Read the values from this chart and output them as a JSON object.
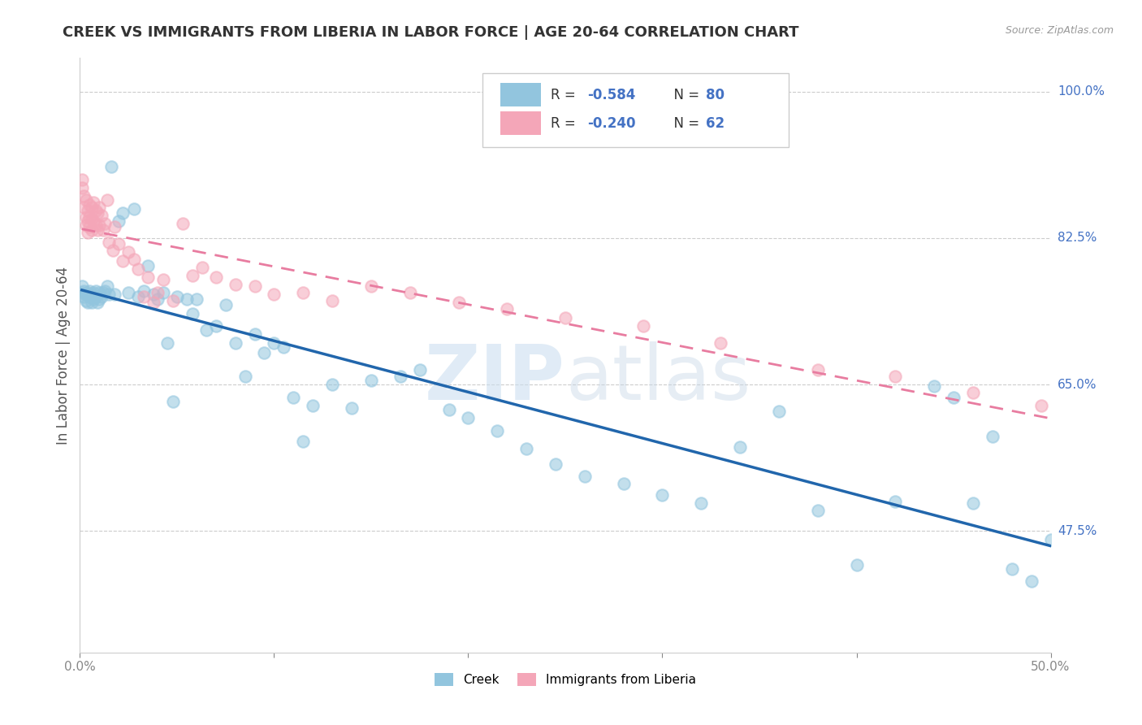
{
  "title": "CREEK VS IMMIGRANTS FROM LIBERIA IN LABOR FORCE | AGE 20-64 CORRELATION CHART",
  "source": "Source: ZipAtlas.com",
  "ylabel": "In Labor Force | Age 20-64",
  "xmin": 0.0,
  "xmax": 0.5,
  "ymin": 0.33,
  "ymax": 1.04,
  "creek_color": "#92c5de",
  "liberia_color": "#f4a6b8",
  "creek_line_color": "#2166ac",
  "liberia_line_color": "#e87ca0",
  "legend_R_creek": "-0.584",
  "legend_N_creek": "80",
  "legend_R_liberia": "-0.240",
  "legend_N_liberia": "62",
  "watermark_zip": "ZIP",
  "watermark_atlas": "atlas",
  "creek_scatter_x": [
    0.001,
    0.001,
    0.002,
    0.002,
    0.003,
    0.003,
    0.004,
    0.004,
    0.005,
    0.005,
    0.006,
    0.006,
    0.007,
    0.007,
    0.008,
    0.008,
    0.009,
    0.01,
    0.01,
    0.011,
    0.012,
    0.013,
    0.014,
    0.015,
    0.016,
    0.018,
    0.02,
    0.022,
    0.025,
    0.028,
    0.03,
    0.033,
    0.035,
    0.038,
    0.04,
    0.043,
    0.045,
    0.048,
    0.05,
    0.055,
    0.058,
    0.06,
    0.065,
    0.07,
    0.075,
    0.08,
    0.085,
    0.09,
    0.095,
    0.1,
    0.105,
    0.11,
    0.115,
    0.12,
    0.13,
    0.14,
    0.15,
    0.165,
    0.175,
    0.19,
    0.2,
    0.215,
    0.23,
    0.245,
    0.26,
    0.28,
    0.3,
    0.32,
    0.34,
    0.36,
    0.38,
    0.4,
    0.42,
    0.44,
    0.45,
    0.46,
    0.47,
    0.48,
    0.49,
    0.5
  ],
  "creek_scatter_y": [
    0.76,
    0.768,
    0.755,
    0.762,
    0.75,
    0.758,
    0.748,
    0.76,
    0.755,
    0.762,
    0.748,
    0.758,
    0.752,
    0.76,
    0.755,
    0.762,
    0.748,
    0.76,
    0.752,
    0.755,
    0.76,
    0.762,
    0.768,
    0.758,
    0.91,
    0.758,
    0.845,
    0.855,
    0.76,
    0.86,
    0.755,
    0.762,
    0.792,
    0.758,
    0.752,
    0.76,
    0.7,
    0.63,
    0.755,
    0.752,
    0.735,
    0.752,
    0.715,
    0.72,
    0.745,
    0.7,
    0.66,
    0.71,
    0.688,
    0.7,
    0.695,
    0.635,
    0.582,
    0.625,
    0.65,
    0.622,
    0.655,
    0.66,
    0.668,
    0.62,
    0.61,
    0.595,
    0.573,
    0.555,
    0.54,
    0.532,
    0.518,
    0.508,
    0.575,
    0.618,
    0.5,
    0.435,
    0.51,
    0.648,
    0.635,
    0.508,
    0.588,
    0.43,
    0.415,
    0.465
  ],
  "liberia_scatter_x": [
    0.001,
    0.001,
    0.002,
    0.002,
    0.003,
    0.003,
    0.003,
    0.004,
    0.004,
    0.004,
    0.005,
    0.005,
    0.005,
    0.006,
    0.006,
    0.006,
    0.007,
    0.007,
    0.008,
    0.008,
    0.009,
    0.009,
    0.01,
    0.01,
    0.011,
    0.012,
    0.013,
    0.014,
    0.015,
    0.017,
    0.018,
    0.02,
    0.022,
    0.025,
    0.028,
    0.03,
    0.033,
    0.035,
    0.038,
    0.04,
    0.043,
    0.048,
    0.053,
    0.058,
    0.063,
    0.07,
    0.08,
    0.09,
    0.1,
    0.115,
    0.13,
    0.15,
    0.17,
    0.195,
    0.22,
    0.25,
    0.29,
    0.33,
    0.38,
    0.42,
    0.46,
    0.495
  ],
  "liberia_scatter_y": [
    0.895,
    0.885,
    0.875,
    0.862,
    0.85,
    0.84,
    0.87,
    0.858,
    0.845,
    0.832,
    0.865,
    0.85,
    0.838,
    0.862,
    0.848,
    0.835,
    0.868,
    0.845,
    0.858,
    0.84,
    0.855,
    0.835,
    0.862,
    0.84,
    0.852,
    0.835,
    0.842,
    0.87,
    0.82,
    0.81,
    0.838,
    0.818,
    0.798,
    0.808,
    0.8,
    0.788,
    0.755,
    0.778,
    0.748,
    0.76,
    0.775,
    0.75,
    0.842,
    0.78,
    0.79,
    0.778,
    0.77,
    0.768,
    0.758,
    0.76,
    0.75,
    0.768,
    0.76,
    0.748,
    0.74,
    0.73,
    0.72,
    0.7,
    0.668,
    0.66,
    0.64,
    0.625
  ]
}
